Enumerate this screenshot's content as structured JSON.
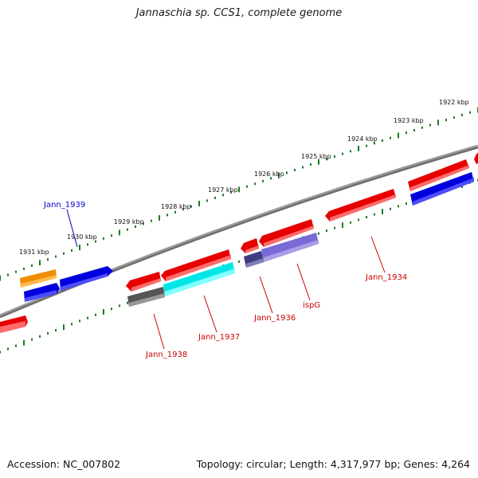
{
  "title": "Jannaschia sp. CCS1, complete genome",
  "footer": {
    "accession": "Accession: NC_007802",
    "summary": "Topology: circular; Length: 4,317,977 bp; Genes: 4,264"
  },
  "scale_labels": [
    "1922 kbp",
    "1923 kbp",
    "1924 kbp",
    "1925 kbp",
    "1926 kbp",
    "1927 kbp",
    "1928 kbp",
    "1929 kbp",
    "1930 kbp",
    "1931 kbp"
  ],
  "gene_labels": {
    "jann_1939": "Jann_1939",
    "jann_1938": "Jann_1938",
    "jann_1937": "Jann_1937",
    "jann_1936": "Jann_1936",
    "ispg": "ispG",
    "jann_1934": "Jann_1934"
  },
  "colors": {
    "backbone": "#8a8a8a",
    "ticks": "#1f7a1f",
    "red": "#e60000",
    "blue": "#0000dd",
    "orange": "#f08c00",
    "cyan": "#00e6e6",
    "gray": "#666666",
    "navy": "#3d3d80",
    "lavender": "#7a6ad6",
    "label_red": "#cc0000",
    "label_blue": "#0000cc"
  }
}
